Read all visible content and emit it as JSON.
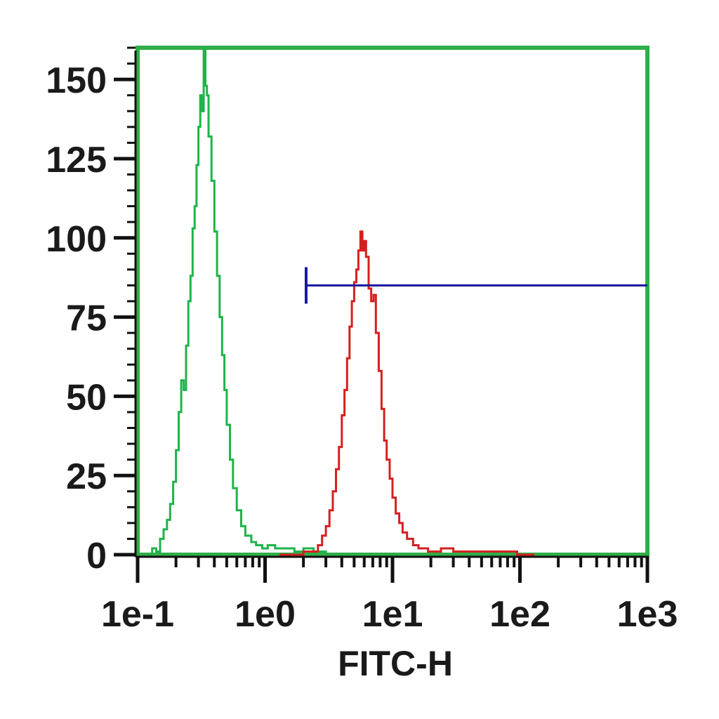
{
  "chart_data": {
    "type": "histogram",
    "xscale": "log",
    "xlabel": "FITC-H",
    "ylabel": "",
    "xlim": [
      0.1,
      1000
    ],
    "ylim": [
      0,
      160
    ],
    "x_ticks": [
      {
        "value": 0.1,
        "label": "1e-1"
      },
      {
        "value": 1,
        "label": "1e0"
      },
      {
        "value": 10,
        "label": "1e1"
      },
      {
        "value": 100,
        "label": "1e2"
      },
      {
        "value": 1000,
        "label": "1e3"
      }
    ],
    "y_ticks": [
      {
        "value": 0,
        "label": "0"
      },
      {
        "value": 25,
        "label": "25"
      },
      {
        "value": 50,
        "label": "50"
      },
      {
        "value": 75,
        "label": "75"
      },
      {
        "value": 100,
        "label": "100"
      },
      {
        "value": 125,
        "label": "125"
      },
      {
        "value": 150,
        "label": "150"
      }
    ],
    "frame_color": "#2fae4a",
    "series": [
      {
        "color": "#1fb34a",
        "points": [
          [
            0.12,
            0
          ],
          [
            0.13,
            2
          ],
          [
            0.14,
            1
          ],
          [
            0.15,
            5
          ],
          [
            0.16,
            8
          ],
          [
            0.17,
            11
          ],
          [
            0.18,
            16
          ],
          [
            0.19,
            23
          ],
          [
            0.2,
            33
          ],
          [
            0.21,
            45
          ],
          [
            0.22,
            55
          ],
          [
            0.23,
            52
          ],
          [
            0.24,
            66
          ],
          [
            0.25,
            80
          ],
          [
            0.26,
            88
          ],
          [
            0.27,
            103
          ],
          [
            0.28,
            110
          ],
          [
            0.29,
            123
          ],
          [
            0.3,
            135
          ],
          [
            0.31,
            145
          ],
          [
            0.32,
            140
          ],
          [
            0.33,
            160
          ],
          [
            0.34,
            148
          ],
          [
            0.35,
            145
          ],
          [
            0.36,
            132
          ],
          [
            0.38,
            118
          ],
          [
            0.4,
            102
          ],
          [
            0.42,
            88
          ],
          [
            0.44,
            75
          ],
          [
            0.46,
            63
          ],
          [
            0.48,
            52
          ],
          [
            0.5,
            41
          ],
          [
            0.53,
            30
          ],
          [
            0.56,
            21
          ],
          [
            0.6,
            14
          ],
          [
            0.65,
            9
          ],
          [
            0.7,
            6
          ],
          [
            0.78,
            4
          ],
          [
            0.85,
            3
          ],
          [
            0.95,
            2
          ],
          [
            1.05,
            3
          ],
          [
            1.2,
            2
          ],
          [
            1.4,
            2
          ],
          [
            1.7,
            1
          ],
          [
            2.0,
            2
          ],
          [
            2.4,
            1
          ],
          [
            3.0,
            0
          ]
        ]
      },
      {
        "color": "#d42020",
        "points": [
          [
            1.3,
            0
          ],
          [
            1.6,
            0
          ],
          [
            2.0,
            1
          ],
          [
            2.3,
            1
          ],
          [
            2.6,
            3
          ],
          [
            2.8,
            6
          ],
          [
            3.0,
            9
          ],
          [
            3.2,
            14
          ],
          [
            3.4,
            20
          ],
          [
            3.6,
            27
          ],
          [
            3.8,
            34
          ],
          [
            4.0,
            44
          ],
          [
            4.2,
            52
          ],
          [
            4.4,
            62
          ],
          [
            4.6,
            72
          ],
          [
            4.8,
            80
          ],
          [
            5.0,
            86
          ],
          [
            5.2,
            90
          ],
          [
            5.4,
            96
          ],
          [
            5.6,
            102
          ],
          [
            5.8,
            96
          ],
          [
            6.0,
            99
          ],
          [
            6.2,
            94
          ],
          [
            6.5,
            84
          ],
          [
            6.8,
            80
          ],
          [
            7.1,
            82
          ],
          [
            7.4,
            70
          ],
          [
            7.8,
            58
          ],
          [
            8.2,
            46
          ],
          [
            8.6,
            36
          ],
          [
            9.0,
            30
          ],
          [
            9.5,
            24
          ],
          [
            10.0,
            18
          ],
          [
            10.6,
            13
          ],
          [
            11.3,
            10
          ],
          [
            12.0,
            7
          ],
          [
            13.0,
            5
          ],
          [
            14.5,
            3
          ],
          [
            16.0,
            2
          ],
          [
            19.0,
            1
          ],
          [
            24.0,
            2
          ],
          [
            30.0,
            1
          ],
          [
            40.0,
            1
          ],
          [
            55.0,
            1
          ],
          [
            75.0,
            1
          ],
          [
            95.0,
            0
          ],
          [
            130.0,
            0
          ]
        ]
      }
    ],
    "gate": {
      "color": "#1a1aa0",
      "x_start": 2.1,
      "x_end": 1000,
      "y": 85
    }
  }
}
